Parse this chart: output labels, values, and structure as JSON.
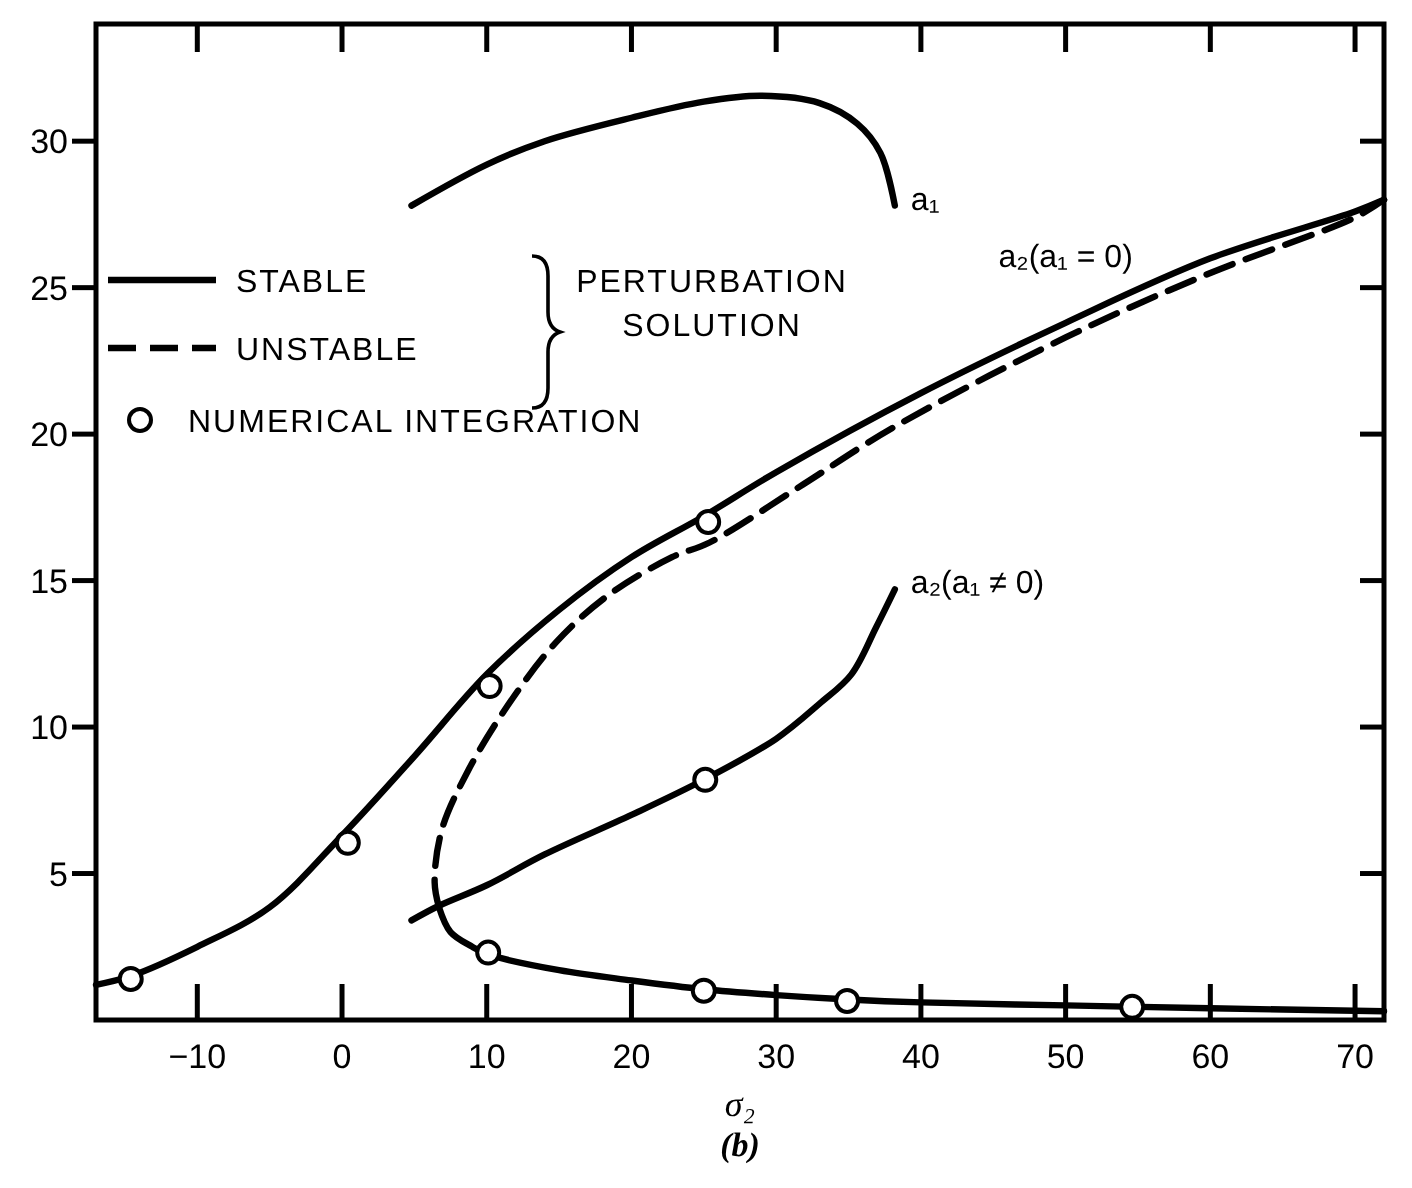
{
  "chart_data": {
    "type": "line",
    "xlabel": "σ₂",
    "legend_title": "PERTURBATION SOLUTION",
    "legend": "top left",
    "xlim": [
      -17,
      72
    ],
    "ylim": [
      0,
      34
    ],
    "xticks": [
      -10,
      0,
      10,
      20,
      30,
      40,
      50,
      60,
      70
    ],
    "yticks": [
      5,
      10,
      15,
      20,
      25,
      30
    ],
    "series": [
      {
        "name": "STABLE",
        "color": "#000000",
        "line_style": "solid",
        "marker": "none",
        "x": [
          6.7,
          7.5,
          9,
          10,
          15,
          20,
          25,
          30,
          35,
          40,
          50,
          60,
          72
        ],
        "values": [
          3.85,
          3.0,
          2.5,
          2.25,
          1.7,
          1.35,
          1.05,
          0.85,
          0.7,
          0.6,
          0.5,
          0.4,
          0.3
        ]
      },
      {
        "name": "a₂(a₁ = 0)",
        "color": "#000000",
        "line_style": "solid",
        "marker": "none",
        "x": [
          -17,
          -14.6,
          -10,
          -5,
          0,
          5,
          10,
          15,
          20,
          25,
          30,
          40,
          50,
          60,
          70,
          72
        ],
        "values": [
          1.2,
          1.5,
          2.5,
          3.85,
          6.3,
          9.0,
          11.8,
          14.0,
          15.8,
          17.2,
          18.7,
          21.4,
          23.8,
          26.0,
          27.6,
          28.0
        ]
      },
      {
        "name": "a₂(a₁ ≠ 0)",
        "color": "#000000",
        "line_style": "solid",
        "marker": "none",
        "x": [
          4.8,
          6.7,
          10,
          14,
          20,
          25,
          30,
          33,
          35.2,
          36.9,
          38.2
        ],
        "values": [
          3.4,
          3.9,
          4.6,
          5.65,
          7.0,
          8.2,
          9.6,
          10.8,
          11.8,
          13.4,
          14.7
        ]
      },
      {
        "name": "a₁",
        "color": "#000000",
        "line_style": "solid",
        "marker": "none",
        "x": [
          4.8,
          10,
          14,
          20,
          25,
          29,
          33,
          35.6,
          37.2,
          38.2
        ],
        "values": [
          27.8,
          29.2,
          30.0,
          30.8,
          31.35,
          31.55,
          31.3,
          30.6,
          29.6,
          27.8
        ]
      },
      {
        "name": "UNSTABLE",
        "color": "#000000",
        "line_style": "dashed",
        "marker": "none",
        "x": [
          6.7,
          6.4,
          6.9,
          8.7,
          11.4,
          14.8,
          18.4,
          22.8,
          25.4,
          31.6,
          38,
          50,
          60,
          70,
          72
        ],
        "values": [
          3.85,
          4.7,
          6.5,
          8.5,
          10.7,
          12.9,
          14.5,
          15.8,
          16.3,
          18.2,
          20.2,
          23.3,
          25.5,
          27.4,
          28.0
        ]
      },
      {
        "name": "NUMERICAL INTEGRATION",
        "type": "scatter",
        "color": "#000000",
        "marker": "circle",
        "x": [
          -14.6,
          0.4,
          10.2,
          25.3,
          10.1,
          25.0,
          34.9,
          54.6,
          25.1
        ],
        "values": [
          1.4,
          6.05,
          11.4,
          17.0,
          2.3,
          1.0,
          0.65,
          0.45,
          8.2
        ]
      }
    ],
    "annotations": [
      "(b)"
    ]
  }
}
